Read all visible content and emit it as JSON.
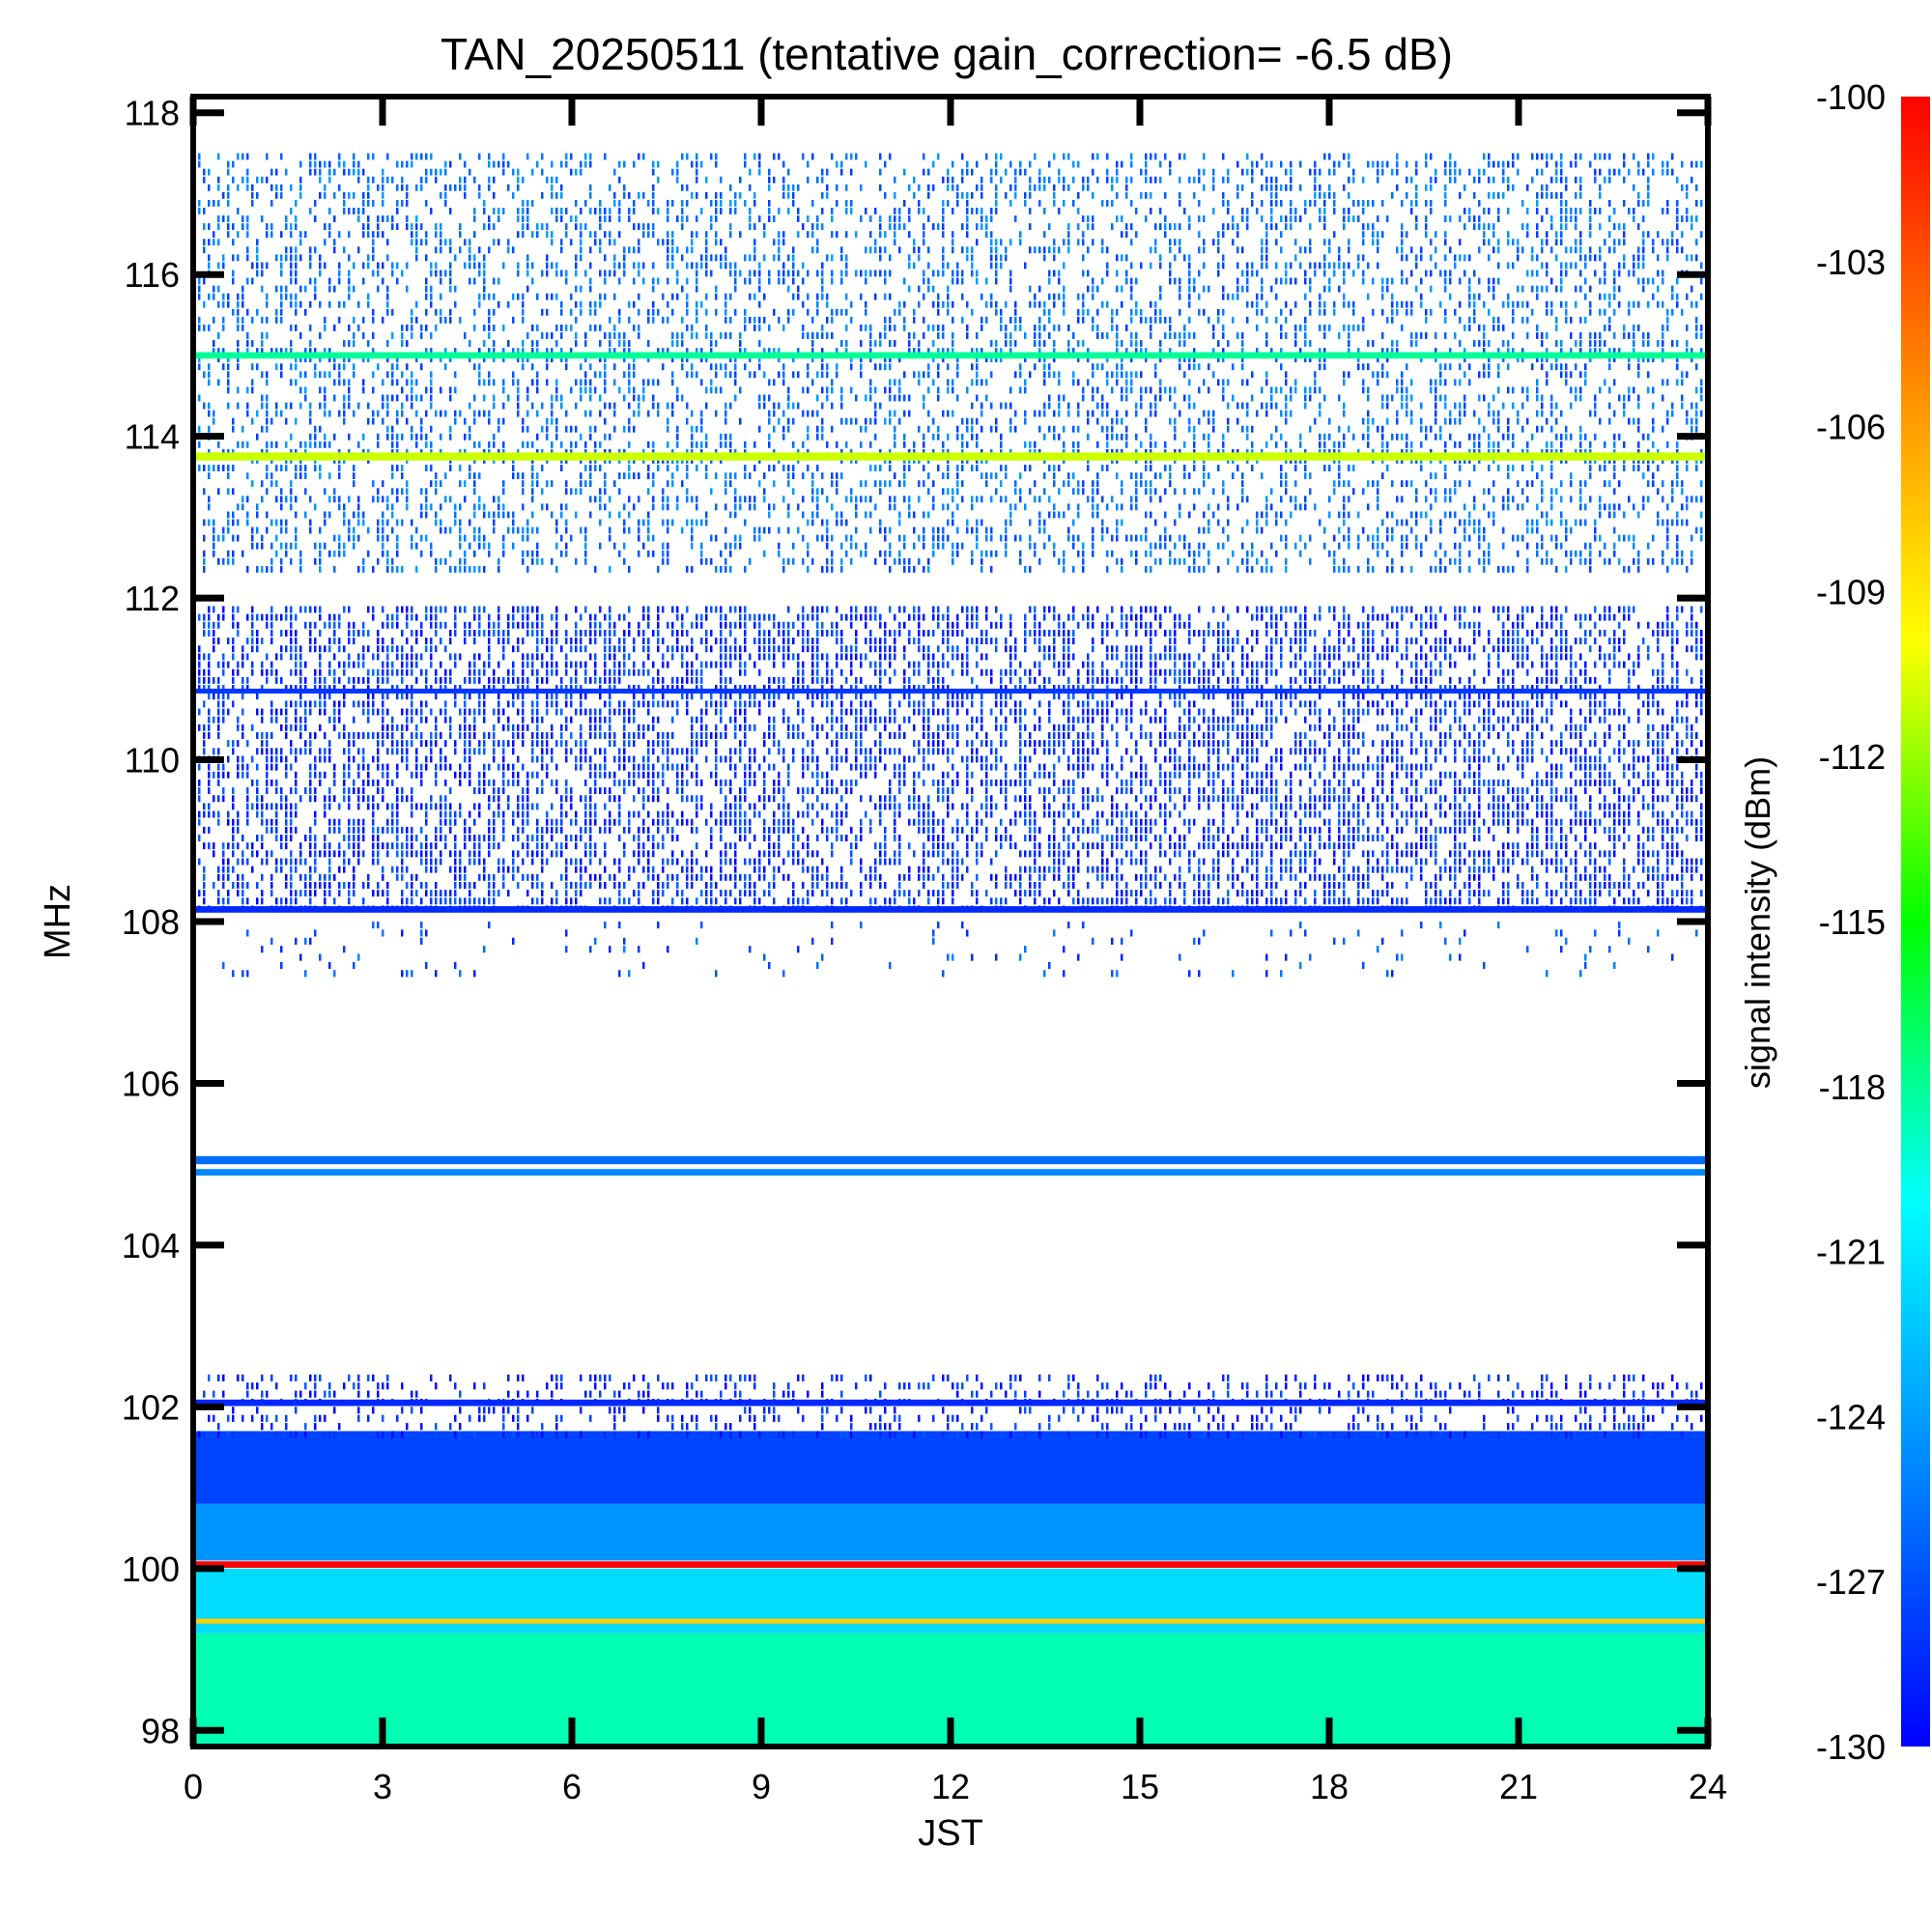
{
  "chart_data": {
    "type": "heatmap",
    "title": "TAN_20250511 (tentative gain_correction= -6.5 dB)",
    "xlabel": "JST",
    "ylabel": "MHz",
    "colorbar_label": "signal intensity (dBm)",
    "xlim": [
      0,
      24
    ],
    "ylim": [
      97.8,
      118.2
    ],
    "x_ticks": [
      "0",
      "3",
      "6",
      "9",
      "12",
      "15",
      "18",
      "21",
      "24"
    ],
    "y_ticks": [
      "98",
      "100",
      "102",
      "104",
      "106",
      "108",
      "110",
      "112",
      "114",
      "116",
      "118"
    ],
    "colorbar_ticks": [
      "-100",
      "-103",
      "-106",
      "-109",
      "-112",
      "-115",
      "-118",
      "-121",
      "-124",
      "-127",
      "-130"
    ],
    "colorbar_range": [
      -130,
      -100
    ],
    "colormap": [
      "#0000ff",
      "#0088ff",
      "#00ffff",
      "#00ff00",
      "#ffff00",
      "#ff8800",
      "#ff0000"
    ],
    "continuous_bands": [
      {
        "freq_low": 97.8,
        "freq_high": 99.2,
        "intensity": -118.5
      },
      {
        "freq_low": 99.2,
        "freq_high": 100.0,
        "intensity": -121.5
      },
      {
        "freq_low": 100.1,
        "freq_high": 100.8,
        "intensity": -124.5
      },
      {
        "freq_low": 100.8,
        "freq_high": 101.7,
        "intensity": -127.5
      }
    ],
    "lines": [
      {
        "freq": 115.0,
        "intensity": -118,
        "width": 0.08
      },
      {
        "freq": 113.75,
        "intensity": -111,
        "width": 0.1
      },
      {
        "freq": 110.85,
        "intensity": -128,
        "width": 0.06
      },
      {
        "freq": 108.15,
        "intensity": -128.5,
        "width": 0.08
      },
      {
        "freq": 105.05,
        "intensity": -126,
        "width": 0.1
      },
      {
        "freq": 104.9,
        "intensity": -125,
        "width": 0.08
      },
      {
        "freq": 102.05,
        "intensity": -128.5,
        "width": 0.08
      },
      {
        "freq": 100.05,
        "intensity": -100,
        "width": 0.08
      },
      {
        "freq": 99.35,
        "intensity": -108,
        "width": 0.06
      }
    ],
    "noise_regions": [
      {
        "freq_low": 112.3,
        "freq_high": 117.5,
        "intensity": -126,
        "density": 0.35
      },
      {
        "freq_low": 108.1,
        "freq_high": 111.9,
        "intensity": -128,
        "density": 0.55
      },
      {
        "freq_low": 107.3,
        "freq_high": 108.0,
        "intensity": -127,
        "density": 0.06
      },
      {
        "freq_low": 101.6,
        "freq_high": 102.4,
        "intensity": -128.5,
        "density": 0.3
      }
    ]
  }
}
